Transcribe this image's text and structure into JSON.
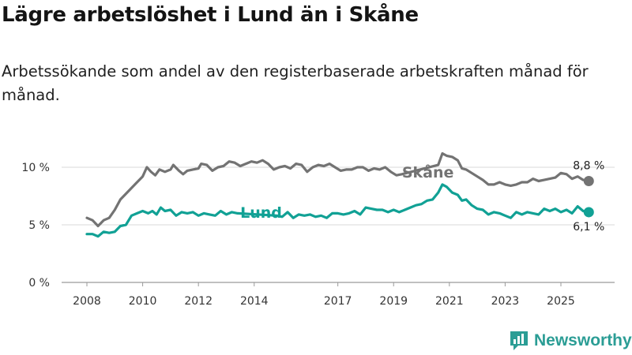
{
  "header": {
    "title": "Lägre arbetslöshet i Lund än i Skåne",
    "subtitle": "Arbetssökande som andel av den registerbaserade arbetskraften månad för månad."
  },
  "chart_data": {
    "type": "line",
    "title": "Lägre arbetslöshet i Lund än i Skåne",
    "xlabel": "",
    "ylabel": "",
    "x_range": [
      2008.0,
      2026.1
    ],
    "ylim": [
      0,
      12
    ],
    "grid": true,
    "y_ticks": [
      {
        "value": 0,
        "label": "0 %"
      },
      {
        "value": 5,
        "label": "5 %"
      },
      {
        "value": 10,
        "label": "10 %"
      }
    ],
    "x_ticks": [
      {
        "value": 2008,
        "label": "2008"
      },
      {
        "value": 2010,
        "label": "2010"
      },
      {
        "value": 2012,
        "label": "2012"
      },
      {
        "value": 2014,
        "label": "2014"
      },
      {
        "value": 2017,
        "label": "2017"
      },
      {
        "value": 2019,
        "label": "2019"
      },
      {
        "value": 2021,
        "label": "2021"
      },
      {
        "value": 2023,
        "label": "2023"
      },
      {
        "value": 2025,
        "label": "2025"
      }
    ],
    "series": [
      {
        "name": "Skåne",
        "color": "#737373",
        "end_label": "8,8 %",
        "points": [
          [
            2008.0,
            5.6
          ],
          [
            2008.2,
            5.4
          ],
          [
            2008.4,
            4.9
          ],
          [
            2008.6,
            5.4
          ],
          [
            2008.8,
            5.6
          ],
          [
            2009.0,
            6.3
          ],
          [
            2009.2,
            7.2
          ],
          [
            2009.4,
            7.7
          ],
          [
            2009.6,
            8.2
          ],
          [
            2009.8,
            8.7
          ],
          [
            2010.0,
            9.2
          ],
          [
            2010.15,
            10.0
          ],
          [
            2010.3,
            9.6
          ],
          [
            2010.45,
            9.3
          ],
          [
            2010.6,
            9.8
          ],
          [
            2010.8,
            9.6
          ],
          [
            2011.0,
            9.8
          ],
          [
            2011.1,
            10.2
          ],
          [
            2011.3,
            9.7
          ],
          [
            2011.45,
            9.4
          ],
          [
            2011.6,
            9.7
          ],
          [
            2011.8,
            9.8
          ],
          [
            2012.0,
            9.9
          ],
          [
            2012.1,
            10.3
          ],
          [
            2012.3,
            10.2
          ],
          [
            2012.5,
            9.7
          ],
          [
            2012.7,
            10.0
          ],
          [
            2012.9,
            10.1
          ],
          [
            2013.1,
            10.5
          ],
          [
            2013.3,
            10.4
          ],
          [
            2013.5,
            10.1
          ],
          [
            2013.7,
            10.3
          ],
          [
            2013.9,
            10.5
          ],
          [
            2014.1,
            10.4
          ],
          [
            2014.3,
            10.6
          ],
          [
            2014.5,
            10.3
          ],
          [
            2014.7,
            9.8
          ],
          [
            2014.9,
            10.0
          ],
          [
            2015.1,
            10.1
          ],
          [
            2015.3,
            9.9
          ],
          [
            2015.5,
            10.3
          ],
          [
            2015.7,
            10.2
          ],
          [
            2015.9,
            9.6
          ],
          [
            2016.1,
            10.0
          ],
          [
            2016.3,
            10.2
          ],
          [
            2016.5,
            10.1
          ],
          [
            2016.7,
            10.3
          ],
          [
            2016.9,
            10.0
          ],
          [
            2017.1,
            9.7
          ],
          [
            2017.3,
            9.8
          ],
          [
            2017.5,
            9.8
          ],
          [
            2017.7,
            10.0
          ],
          [
            2017.9,
            10.0
          ],
          [
            2018.1,
            9.7
          ],
          [
            2018.3,
            9.9
          ],
          [
            2018.5,
            9.8
          ],
          [
            2018.7,
            10.0
          ],
          [
            2018.9,
            9.6
          ],
          [
            2019.1,
            9.3
          ],
          [
            2019.3,
            9.4
          ],
          [
            2020.6,
            10.2
          ],
          [
            2020.75,
            11.2
          ],
          [
            2020.9,
            11.0
          ],
          [
            2021.1,
            10.9
          ],
          [
            2021.3,
            10.6
          ],
          [
            2021.45,
            9.9
          ],
          [
            2021.6,
            9.8
          ],
          [
            2021.8,
            9.5
          ],
          [
            2022.0,
            9.2
          ],
          [
            2022.2,
            8.9
          ],
          [
            2022.4,
            8.5
          ],
          [
            2022.6,
            8.5
          ],
          [
            2022.8,
            8.7
          ],
          [
            2023.0,
            8.5
          ],
          [
            2023.2,
            8.4
          ],
          [
            2023.4,
            8.5
          ],
          [
            2023.6,
            8.7
          ],
          [
            2023.8,
            8.7
          ],
          [
            2024.0,
            9.0
          ],
          [
            2024.2,
            8.8
          ],
          [
            2024.4,
            8.9
          ],
          [
            2024.6,
            9.0
          ],
          [
            2024.8,
            9.1
          ],
          [
            2025.0,
            9.5
          ],
          [
            2025.2,
            9.4
          ],
          [
            2025.4,
            9.0
          ],
          [
            2025.6,
            9.2
          ],
          [
            2025.8,
            8.9
          ],
          [
            2026.0,
            8.8
          ]
        ]
      },
      {
        "name": "Lund",
        "color": "#11a195",
        "end_label": "6,1 %",
        "points": [
          [
            2008.0,
            4.2
          ],
          [
            2008.2,
            4.2
          ],
          [
            2008.4,
            4.0
          ],
          [
            2008.6,
            4.4
          ],
          [
            2008.8,
            4.3
          ],
          [
            2009.0,
            4.4
          ],
          [
            2009.2,
            4.9
          ],
          [
            2009.4,
            5.0
          ],
          [
            2009.6,
            5.8
          ],
          [
            2009.8,
            6.0
          ],
          [
            2010.0,
            6.2
          ],
          [
            2010.2,
            6.0
          ],
          [
            2010.35,
            6.2
          ],
          [
            2010.5,
            5.9
          ],
          [
            2010.65,
            6.5
          ],
          [
            2010.8,
            6.2
          ],
          [
            2011.0,
            6.3
          ],
          [
            2011.2,
            5.8
          ],
          [
            2011.4,
            6.1
          ],
          [
            2011.6,
            6.0
          ],
          [
            2011.8,
            6.1
          ],
          [
            2012.0,
            5.8
          ],
          [
            2012.2,
            6.0
          ],
          [
            2012.4,
            5.9
          ],
          [
            2012.6,
            5.8
          ],
          [
            2012.8,
            6.2
          ],
          [
            2013.0,
            5.9
          ],
          [
            2013.2,
            6.1
          ],
          [
            2013.4,
            6.0
          ],
          [
            2014.8,
            5.8
          ],
          [
            2015.0,
            5.7
          ],
          [
            2015.2,
            6.1
          ],
          [
            2015.4,
            5.6
          ],
          [
            2015.6,
            5.9
          ],
          [
            2015.8,
            5.8
          ],
          [
            2016.0,
            5.9
          ],
          [
            2016.2,
            5.7
          ],
          [
            2016.4,
            5.8
          ],
          [
            2016.6,
            5.6
          ],
          [
            2016.8,
            6.0
          ],
          [
            2017.0,
            6.0
          ],
          [
            2017.2,
            5.9
          ],
          [
            2017.4,
            6.0
          ],
          [
            2017.6,
            6.2
          ],
          [
            2017.8,
            5.9
          ],
          [
            2018.0,
            6.5
          ],
          [
            2018.2,
            6.4
          ],
          [
            2018.4,
            6.3
          ],
          [
            2018.6,
            6.3
          ],
          [
            2018.8,
            6.1
          ],
          [
            2019.0,
            6.3
          ],
          [
            2019.2,
            6.1
          ],
          [
            2019.4,
            6.3
          ],
          [
            2019.6,
            6.5
          ],
          [
            2019.8,
            6.7
          ],
          [
            2020.0,
            6.8
          ],
          [
            2020.2,
            7.1
          ],
          [
            2020.4,
            7.2
          ],
          [
            2020.6,
            7.8
          ],
          [
            2020.75,
            8.5
          ],
          [
            2020.9,
            8.3
          ],
          [
            2021.1,
            7.8
          ],
          [
            2021.3,
            7.6
          ],
          [
            2021.45,
            7.1
          ],
          [
            2021.6,
            7.2
          ],
          [
            2021.8,
            6.7
          ],
          [
            2022.0,
            6.4
          ],
          [
            2022.2,
            6.3
          ],
          [
            2022.4,
            5.9
          ],
          [
            2022.6,
            6.1
          ],
          [
            2022.8,
            6.0
          ],
          [
            2023.0,
            5.8
          ],
          [
            2023.2,
            5.6
          ],
          [
            2023.4,
            6.1
          ],
          [
            2023.6,
            5.9
          ],
          [
            2023.8,
            6.1
          ],
          [
            2024.0,
            6.0
          ],
          [
            2024.2,
            5.9
          ],
          [
            2024.4,
            6.4
          ],
          [
            2024.6,
            6.2
          ],
          [
            2024.8,
            6.4
          ],
          [
            2025.0,
            6.1
          ],
          [
            2025.2,
            6.3
          ],
          [
            2025.4,
            6.0
          ],
          [
            2025.6,
            6.6
          ],
          [
            2025.8,
            6.2
          ],
          [
            2026.0,
            6.1
          ]
        ]
      }
    ],
    "inline_labels": [
      {
        "series": "Lund",
        "text": "Lund",
        "x": 2013.5,
        "y": 6.1
      },
      {
        "series": "Skåne",
        "text": "Skåne",
        "x": 2019.3,
        "y": 9.6
      }
    ]
  },
  "brand": {
    "name": "Newsworthy",
    "icon": "newsworthy-logo-icon",
    "color": "#2b9d95"
  }
}
